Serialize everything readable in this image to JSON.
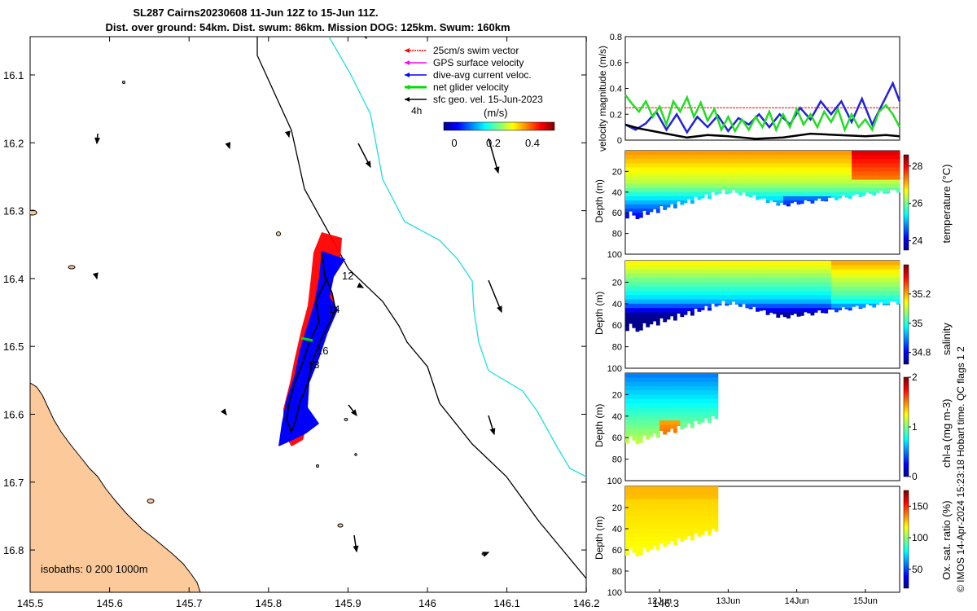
{
  "header": {
    "line1": "SL287 Cairns20230608 11-Jun 12Z to 15-Jun 11Z.",
    "line2": "Dist. over ground: 54km. Dist. swum: 86km. Mission DOG: 125km. Swum: 160km"
  },
  "colors": {
    "land": "#fbc99a",
    "coast": "#000000",
    "isobath200": "#000000",
    "isobath1000": "#22dddd",
    "track": "#000000",
    "swim": "#ff0000",
    "gps": "#ff00ff",
    "diveavg": "#0000ff",
    "net": "#00dd00",
    "sfcgeo": "#000000",
    "glider_blob": "#0000ff"
  },
  "map": {
    "lon_ticks": [
      "145.5",
      "145.6",
      "145.7",
      "145.8",
      "145.9",
      "146",
      "146.1",
      "146.2",
      "146.3"
    ],
    "lat_ticks": [
      "16.1",
      "16.2",
      "16.3",
      "16.4",
      "16.5",
      "16.6",
      "16.7",
      "16.8"
    ],
    "legend": {
      "items": [
        {
          "label": "25cm/s swim vector",
          "color": "#ff0000"
        },
        {
          "label": "GPS surface velocity",
          "color": "#ff00ff"
        },
        {
          "label": "dive-avg current veloc.",
          "color": "#0000ff"
        },
        {
          "label": "net glider velocity",
          "color": "#00dd00"
        },
        {
          "label": "sfc geo. vel. 15-Jun-2023",
          "color": "#000000"
        }
      ],
      "time_label": "4h",
      "units": "(m/s)",
      "cbar_ticks": [
        "0",
        "0.2",
        "0.4"
      ]
    },
    "isobath_text": "isobaths: 0   200  1000m",
    "day_labels": [
      "12",
      "14",
      "16",
      "13"
    ]
  },
  "chart_data": [
    {
      "type": "line",
      "title": "",
      "ylabel": "velocity magnitude (m/s)",
      "ylim": [
        0,
        0.8
      ],
      "yticks": [
        "0",
        "0.2",
        "0.4",
        "0.6",
        "0.8"
      ],
      "xlim_days": [
        11.5,
        15.5
      ],
      "series": [
        {
          "name": "swim reference",
          "color": "#ff0000",
          "values": [
            [
              11.5,
              0.25
            ],
            [
              15.5,
              0.25
            ]
          ]
        },
        {
          "name": "dive-avg current",
          "color": "#2222dd",
          "values": [
            [
              11.5,
              0.12
            ],
            [
              11.65,
              0.08
            ],
            [
              11.8,
              0.13
            ],
            [
              11.95,
              0.22
            ],
            [
              12.1,
              0.08
            ],
            [
              12.25,
              0.2
            ],
            [
              12.4,
              0.06
            ],
            [
              12.55,
              0.18
            ],
            [
              12.7,
              0.1
            ],
            [
              12.85,
              0.19
            ],
            [
              13.0,
              0.07
            ],
            [
              13.15,
              0.17
            ],
            [
              13.3,
              0.12
            ],
            [
              13.45,
              0.2
            ],
            [
              13.6,
              0.1
            ],
            [
              13.75,
              0.2
            ],
            [
              13.9,
              0.12
            ],
            [
              14.05,
              0.25
            ],
            [
              14.2,
              0.16
            ],
            [
              14.35,
              0.3
            ],
            [
              14.5,
              0.2
            ],
            [
              14.65,
              0.3
            ],
            [
              14.8,
              0.14
            ],
            [
              14.95,
              0.32
            ],
            [
              15.1,
              0.12
            ],
            [
              15.25,
              0.28
            ],
            [
              15.4,
              0.44
            ],
            [
              15.5,
              0.3
            ]
          ]
        },
        {
          "name": "net glider velocity",
          "color": "#22dd22",
          "values": [
            [
              11.5,
              0.35
            ],
            [
              11.6,
              0.28
            ],
            [
              11.7,
              0.22
            ],
            [
              11.8,
              0.3
            ],
            [
              11.9,
              0.18
            ],
            [
              12.0,
              0.26
            ],
            [
              12.1,
              0.12
            ],
            [
              12.2,
              0.3
            ],
            [
              12.3,
              0.22
            ],
            [
              12.4,
              0.33
            ],
            [
              12.5,
              0.18
            ],
            [
              12.6,
              0.29
            ],
            [
              12.7,
              0.15
            ],
            [
              12.8,
              0.24
            ],
            [
              12.9,
              0.08
            ],
            [
              13.0,
              0.18
            ],
            [
              13.1,
              0.07
            ],
            [
              13.2,
              0.16
            ],
            [
              13.3,
              0.08
            ],
            [
              13.4,
              0.18
            ],
            [
              13.5,
              0.1
            ],
            [
              13.6,
              0.22
            ],
            [
              13.7,
              0.08
            ],
            [
              13.8,
              0.2
            ],
            [
              13.9,
              0.1
            ],
            [
              14.0,
              0.24
            ],
            [
              14.1,
              0.12
            ],
            [
              14.2,
              0.2
            ],
            [
              14.3,
              0.1
            ],
            [
              14.4,
              0.22
            ],
            [
              14.5,
              0.14
            ],
            [
              14.6,
              0.24
            ],
            [
              14.7,
              0.08
            ],
            [
              14.8,
              0.2
            ],
            [
              14.9,
              0.1
            ],
            [
              15.0,
              0.16
            ],
            [
              15.1,
              0.08
            ],
            [
              15.2,
              0.22
            ],
            [
              15.3,
              0.27
            ],
            [
              15.4,
              0.2
            ],
            [
              15.5,
              0.1
            ]
          ]
        },
        {
          "name": "sfc geo. vel.",
          "color": "#000000",
          "values": [
            [
              11.5,
              0.12
            ],
            [
              11.7,
              0.09
            ],
            [
              11.9,
              0.07
            ],
            [
              12.1,
              0.05
            ],
            [
              12.4,
              0.02
            ],
            [
              12.7,
              0.04
            ],
            [
              13.0,
              0.03
            ],
            [
              13.4,
              0.01
            ],
            [
              13.8,
              0.02
            ],
            [
              14.2,
              0.05
            ],
            [
              14.6,
              0.04
            ],
            [
              15.0,
              0.03
            ],
            [
              15.3,
              0.04
            ],
            [
              15.5,
              0.03
            ]
          ]
        }
      ]
    },
    {
      "type": "heatmap",
      "ylabel": "Depth (m)",
      "cbar_label": "temperature (°C)",
      "cbar_ticks": [
        "24",
        "26",
        "28"
      ],
      "clim": [
        23.5,
        28.6
      ],
      "yticks": [
        "20",
        "40",
        "60",
        "80",
        "100"
      ],
      "ylim": [
        0,
        100
      ]
    },
    {
      "type": "heatmap",
      "ylabel": "Depth (m)",
      "cbar_label": "salinity",
      "cbar_ticks": [
        "34.8",
        "35",
        "35.2"
      ],
      "clim": [
        34.72,
        35.4
      ],
      "yticks": [
        "20",
        "40",
        "60",
        "80",
        "100"
      ],
      "ylim": [
        0,
        100
      ]
    },
    {
      "type": "heatmap",
      "ylabel": "Depth (m)",
      "cbar_label": "chl-a (mg m-3)",
      "cbar_ticks": [
        "0",
        "1",
        "2"
      ],
      "clim": [
        0,
        2
      ],
      "yticks": [
        "20",
        "40",
        "60",
        "80",
        "100"
      ],
      "ylim": [
        0,
        100
      ]
    },
    {
      "type": "heatmap",
      "ylabel": "Depth (m)",
      "cbar_label": "Ox. sat. ratio (%)",
      "cbar_ticks": [
        "50",
        "100",
        "150"
      ],
      "clim": [
        20,
        175
      ],
      "yticks": [
        "20",
        "40",
        "60",
        "80",
        "100"
      ],
      "ylim": [
        0,
        100
      ],
      "xticks": [
        "12Jun",
        "13Jun",
        "14Jun",
        "15Jun"
      ]
    }
  ],
  "footer": {
    "credit": "© IMOS 14-Apr-2024 15:23:18 Hobart time. QC flags 1  2"
  }
}
